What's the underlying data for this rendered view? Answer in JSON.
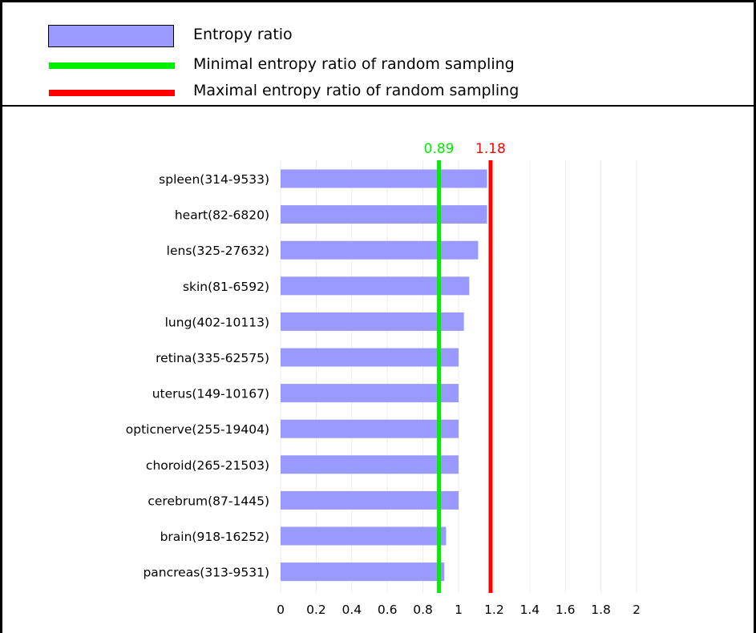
{
  "legend": {
    "items": [
      {
        "label": "Entropy ratio",
        "kind": "bar",
        "color": "#9999ff"
      },
      {
        "label": "Minimal entropy ratio of random sampling",
        "kind": "line",
        "color": "#00ee00"
      },
      {
        "label": "Maximal entropy ratio of random sampling",
        "kind": "line",
        "color": "#ff0000"
      }
    ]
  },
  "chart_data": {
    "type": "bar",
    "orientation": "horizontal",
    "categories": [
      "spleen(314-9533)",
      "heart(82-6820)",
      "lens(325-27632)",
      "skin(81-6592)",
      "lung(402-10113)",
      "retina(335-62575)",
      "uterus(149-10167)",
      "opticnerve(255-19404)",
      "choroid(265-21503)",
      "cerebrum(87-1445)",
      "brain(918-16252)",
      "pancreas(313-9531)"
    ],
    "series": [
      {
        "name": "Entropy ratio",
        "color": "#9999ff",
        "values": [
          1.16,
          1.16,
          1.11,
          1.06,
          1.03,
          1.0,
          1.0,
          1.0,
          1.0,
          1.0,
          0.93,
          0.92
        ]
      }
    ],
    "reference_lines": [
      {
        "name": "Minimal entropy ratio of random sampling",
        "value": 0.89,
        "label": "0.89",
        "color": "#00ee00"
      },
      {
        "name": "Maximal entropy ratio of random sampling",
        "value": 1.18,
        "label": "1.18",
        "color": "#ff0000"
      }
    ],
    "xlim": [
      0,
      2
    ],
    "xticks": [
      0,
      0.2,
      0.4,
      0.6,
      0.8,
      1,
      1.2,
      1.4,
      1.6,
      1.8,
      2
    ],
    "xtick_labels": [
      "0",
      "0.2",
      "0.4",
      "0.6",
      "0.8",
      "1",
      "1.2",
      "1.4",
      "1.6",
      "1.8",
      "2"
    ],
    "grid": true
  }
}
